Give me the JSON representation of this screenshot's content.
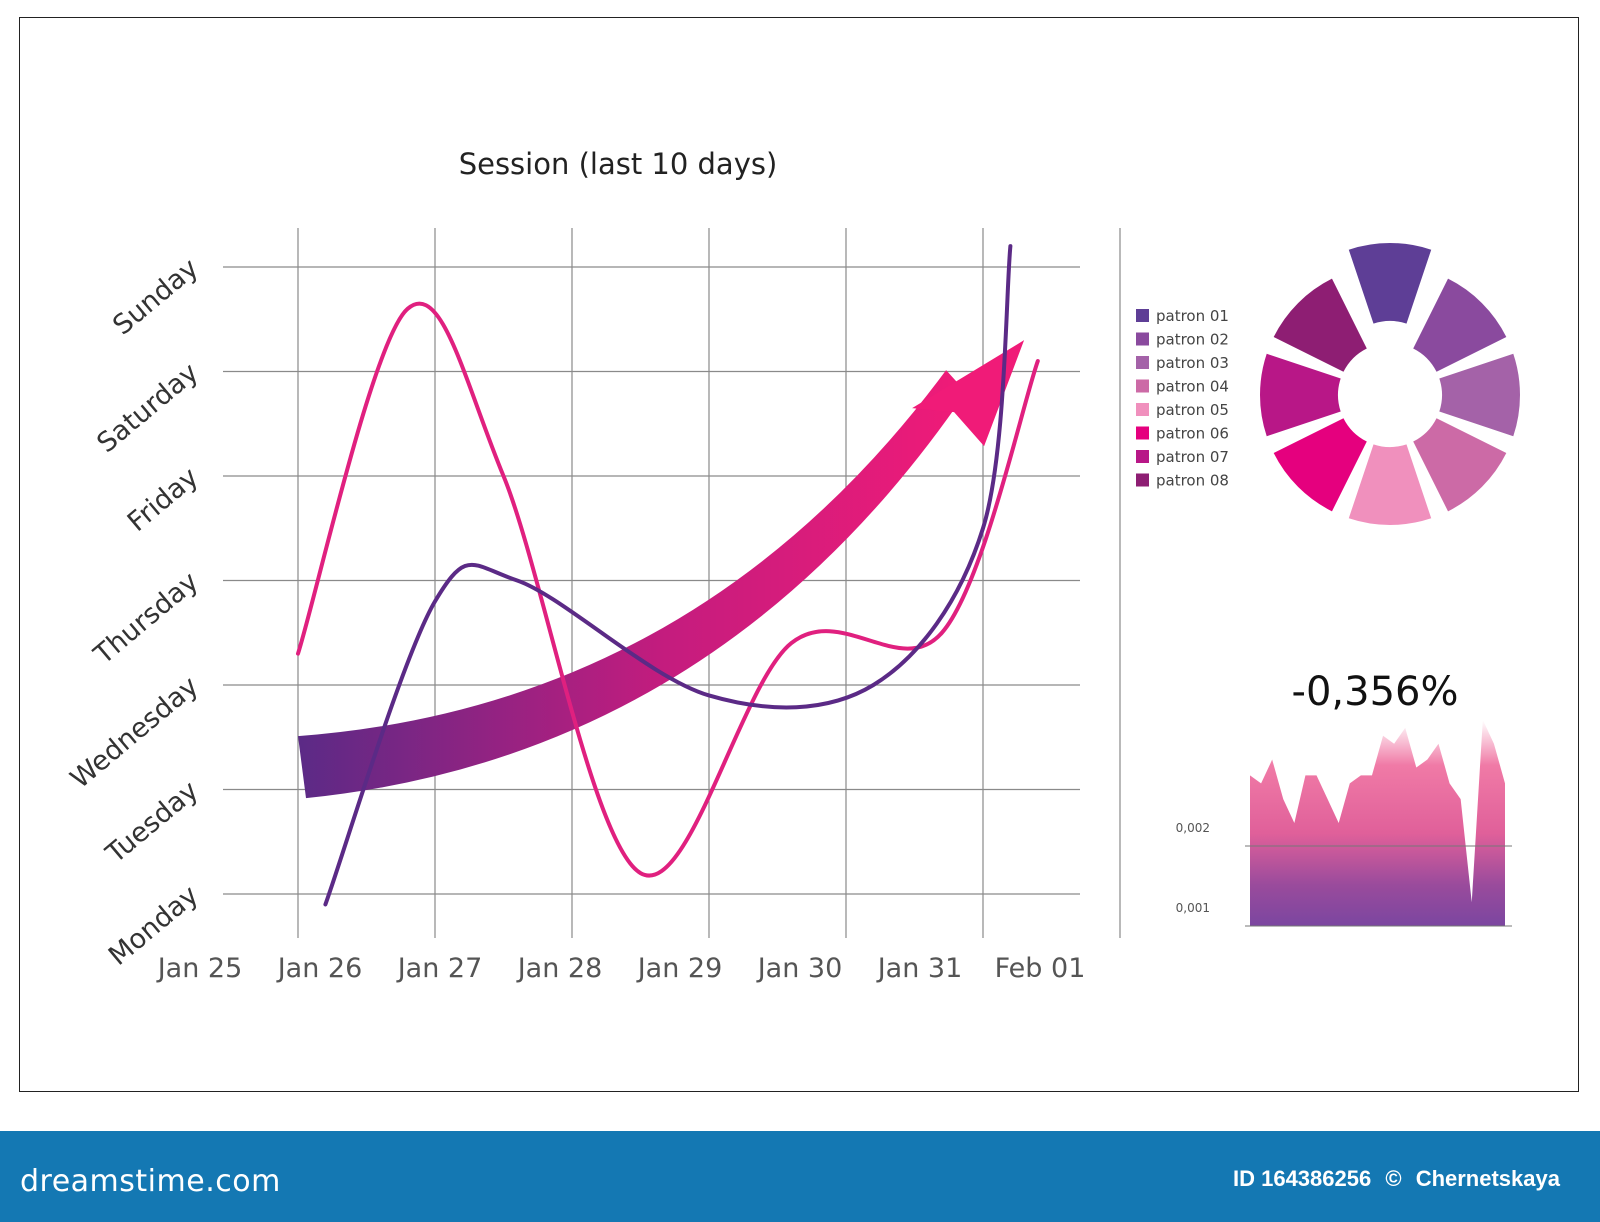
{
  "chart_data": [
    {
      "type": "line",
      "title": "Session (last 10 days)",
      "x_categories": [
        "Jan 25",
        "Jan 26",
        "Jan 27",
        "Jan 28",
        "Jan 29",
        "Jan 30",
        "Jan 31",
        "Feb 01"
      ],
      "y_categories": [
        "Monday",
        "Tuesday",
        "Wednesday",
        "Thursday",
        "Friday",
        "Saturday",
        "Sunday"
      ],
      "grid": true,
      "series": [
        {
          "color": "#e0207f",
          "points": [
            [
              1.0,
              2.3
            ],
            [
              1.8,
              5.6
            ],
            [
              2.5,
              4.0
            ],
            [
              3.5,
              0.2
            ],
            [
              4.6,
              2.4
            ],
            [
              5.7,
              2.5
            ],
            [
              6.4,
              5.1
            ]
          ]
        },
        {
          "color": "#5b2a86",
          "points": [
            [
              1.2,
              -0.1
            ],
            [
              2.0,
              2.8
            ],
            [
              2.6,
              3.0
            ],
            [
              4.0,
              1.9
            ],
            [
              5.2,
              2.0
            ],
            [
              6.0,
              3.5
            ],
            [
              6.2,
              6.2
            ]
          ]
        }
      ],
      "trend_arrow": {
        "color_start": "#5b2a86",
        "color_end": "#f01b78",
        "from": [
          1.0,
          1.3
        ],
        "to": [
          6.3,
          5.3
        ]
      }
    },
    {
      "type": "pie",
      "variant": "donut",
      "legend_position": "left",
      "labels": [
        "patron 01",
        "patron 02",
        "patron 03",
        "patron 04",
        "patron 05",
        "patron 06",
        "patron 07",
        "patron 08"
      ],
      "values": [
        1,
        1,
        1,
        1,
        1,
        1,
        1,
        1
      ],
      "colors": [
        "#5e3e96",
        "#8a4a9e",
        "#a462a8",
        "#cc6aa6",
        "#f090bd",
        "#e5007e",
        "#b81787",
        "#8e1e73"
      ]
    },
    {
      "type": "area",
      "value_label": "-0,356%",
      "ytick_labels": [
        "0,001",
        "0,002"
      ],
      "ylim": [
        0.0008,
        0.0035
      ],
      "x": [
        0,
        1,
        2,
        3,
        4,
        5,
        6,
        7,
        8,
        9,
        10,
        11,
        12,
        13,
        14,
        15,
        16,
        17,
        18,
        19,
        20,
        21,
        22,
        23
      ],
      "values": [
        0.0027,
        0.0026,
        0.0029,
        0.0024,
        0.0021,
        0.0027,
        0.0027,
        0.0024,
        0.0021,
        0.0026,
        0.0027,
        0.0027,
        0.0032,
        0.0031,
        0.0033,
        0.0028,
        0.0029,
        0.0031,
        0.0026,
        0.0024,
        0.0011,
        0.0034,
        0.0031,
        0.0026
      ]
    }
  ],
  "watermark": {
    "logo_text": "dreamstime.com",
    "image_id": "ID 164386256",
    "copyright_symbol": "©",
    "author": "Chernetskaya"
  }
}
